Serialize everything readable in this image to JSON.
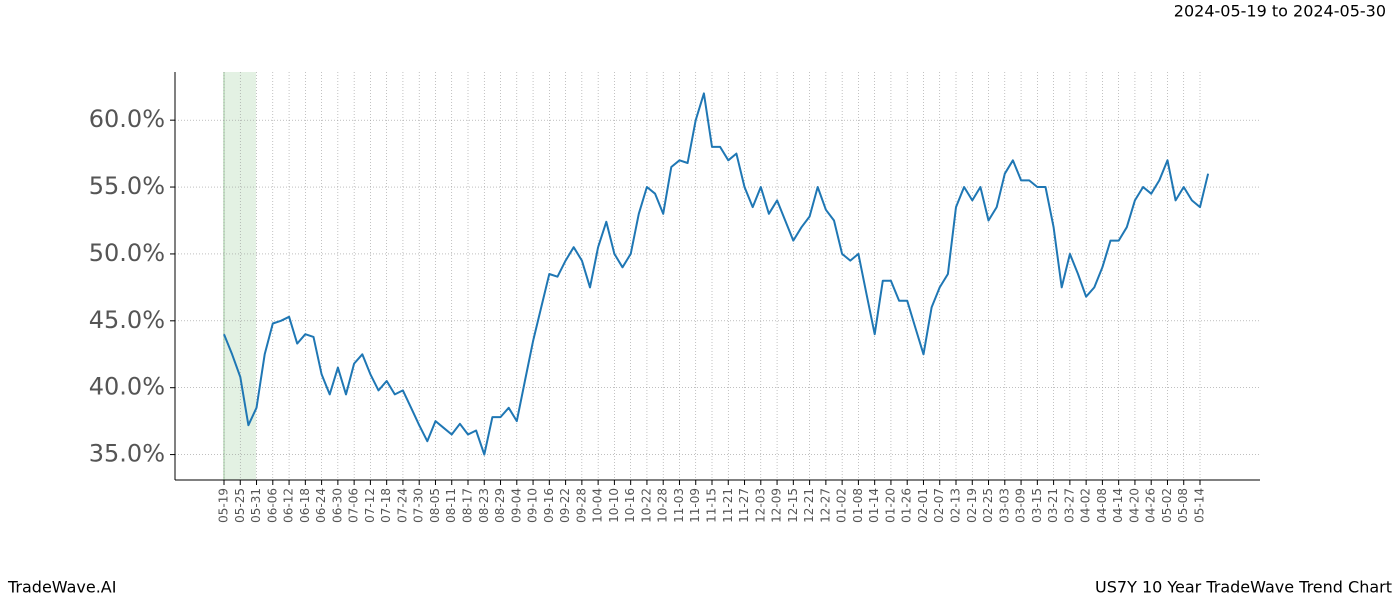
{
  "header": {
    "date_range": "2024-05-19 to 2024-05-30"
  },
  "footer": {
    "brand": "TradeWave.AI",
    "title": "US7Y 10 Year TradeWave Trend Chart"
  },
  "chart_data": {
    "type": "line",
    "color": "#1f77b4",
    "grid": true,
    "categories": [
      "05-19",
      null,
      "05-25",
      null,
      "05-31",
      null,
      "06-06",
      null,
      "06-12",
      null,
      "06-18",
      null,
      "06-24",
      null,
      "06-30",
      null,
      "07-06",
      null,
      "07-12",
      null,
      "07-18",
      null,
      "07-24",
      null,
      "07-30",
      null,
      "08-05",
      null,
      "08-11",
      null,
      "08-17",
      null,
      "08-23",
      null,
      "08-29",
      null,
      "09-04",
      null,
      "09-10",
      null,
      "09-16",
      null,
      "09-22",
      null,
      "09-28",
      null,
      "10-04",
      null,
      "10-10",
      null,
      "10-16",
      null,
      "10-22",
      null,
      "10-28",
      null,
      "11-03",
      null,
      "11-09",
      null,
      "11-15",
      null,
      "11-21",
      null,
      "11-27",
      null,
      "12-03",
      null,
      "12-09",
      null,
      "12-15",
      null,
      "12-21",
      null,
      "12-27",
      null,
      "01-02",
      null,
      "01-08",
      null,
      "01-14",
      null,
      "01-20",
      null,
      "01-26",
      null,
      "02-01",
      null,
      "02-07",
      null,
      "02-13",
      null,
      "02-19",
      null,
      "02-25",
      null,
      "03-03",
      null,
      "03-09",
      null,
      "03-15",
      null,
      "03-21",
      null,
      "03-27",
      null,
      "04-02",
      null,
      "04-08",
      null,
      "04-14",
      null,
      "04-20",
      null,
      "04-26",
      null,
      "05-02",
      null,
      "05-08",
      null,
      "05-14",
      null
    ],
    "values": [
      44.0,
      42.5,
      40.8,
      37.2,
      38.5,
      42.5,
      44.8,
      45.0,
      45.3,
      43.3,
      44.0,
      43.8,
      41.0,
      39.5,
      41.5,
      39.5,
      41.8,
      42.5,
      41.0,
      39.8,
      40.5,
      39.5,
      39.8,
      38.5,
      37.2,
      36.0,
      37.5,
      37.0,
      36.5,
      37.3,
      36.5,
      36.8,
      35.0,
      37.8,
      37.8,
      38.5,
      37.5,
      40.5,
      43.5,
      46.0,
      48.5,
      48.3,
      49.5,
      50.5,
      49.5,
      47.5,
      50.5,
      52.4,
      50.0,
      49.0,
      50.0,
      53.0,
      55.0,
      54.5,
      53.0,
      56.5,
      57.0,
      56.8,
      60.0,
      62.0,
      58.0,
      58.0,
      57.0,
      57.5,
      55.0,
      53.5,
      55.0,
      53.0,
      54.0,
      52.5,
      51.0,
      52.0,
      52.8,
      55.0,
      53.3,
      52.5,
      50.0,
      49.5,
      50.0,
      47.0,
      44.0,
      48.0,
      48.0,
      46.5,
      46.5,
      44.5,
      42.5,
      46.0,
      47.5,
      48.5,
      53.5,
      55.0,
      54.0,
      55.0,
      52.5,
      53.5,
      56.0,
      57.0,
      55.5,
      55.5,
      55.0,
      55.0,
      52.0,
      47.5,
      50.0,
      48.5,
      46.8,
      47.5,
      49.0,
      51.0,
      51.0,
      52.0,
      54.0,
      55.0,
      54.5,
      55.5,
      57.0,
      54.0,
      55.0,
      54.0,
      53.5,
      56.0
    ],
    "ylim": [
      33.1,
      63.6
    ],
    "yticks": [
      {
        "value": 35,
        "label": "35.0%"
      },
      {
        "value": 40,
        "label": "40.0%"
      },
      {
        "value": 45,
        "label": "45.0%"
      },
      {
        "value": 50,
        "label": "50.0%"
      },
      {
        "value": 55,
        "label": "55.0%"
      },
      {
        "value": 60,
        "label": "60.0%"
      }
    ]
  }
}
